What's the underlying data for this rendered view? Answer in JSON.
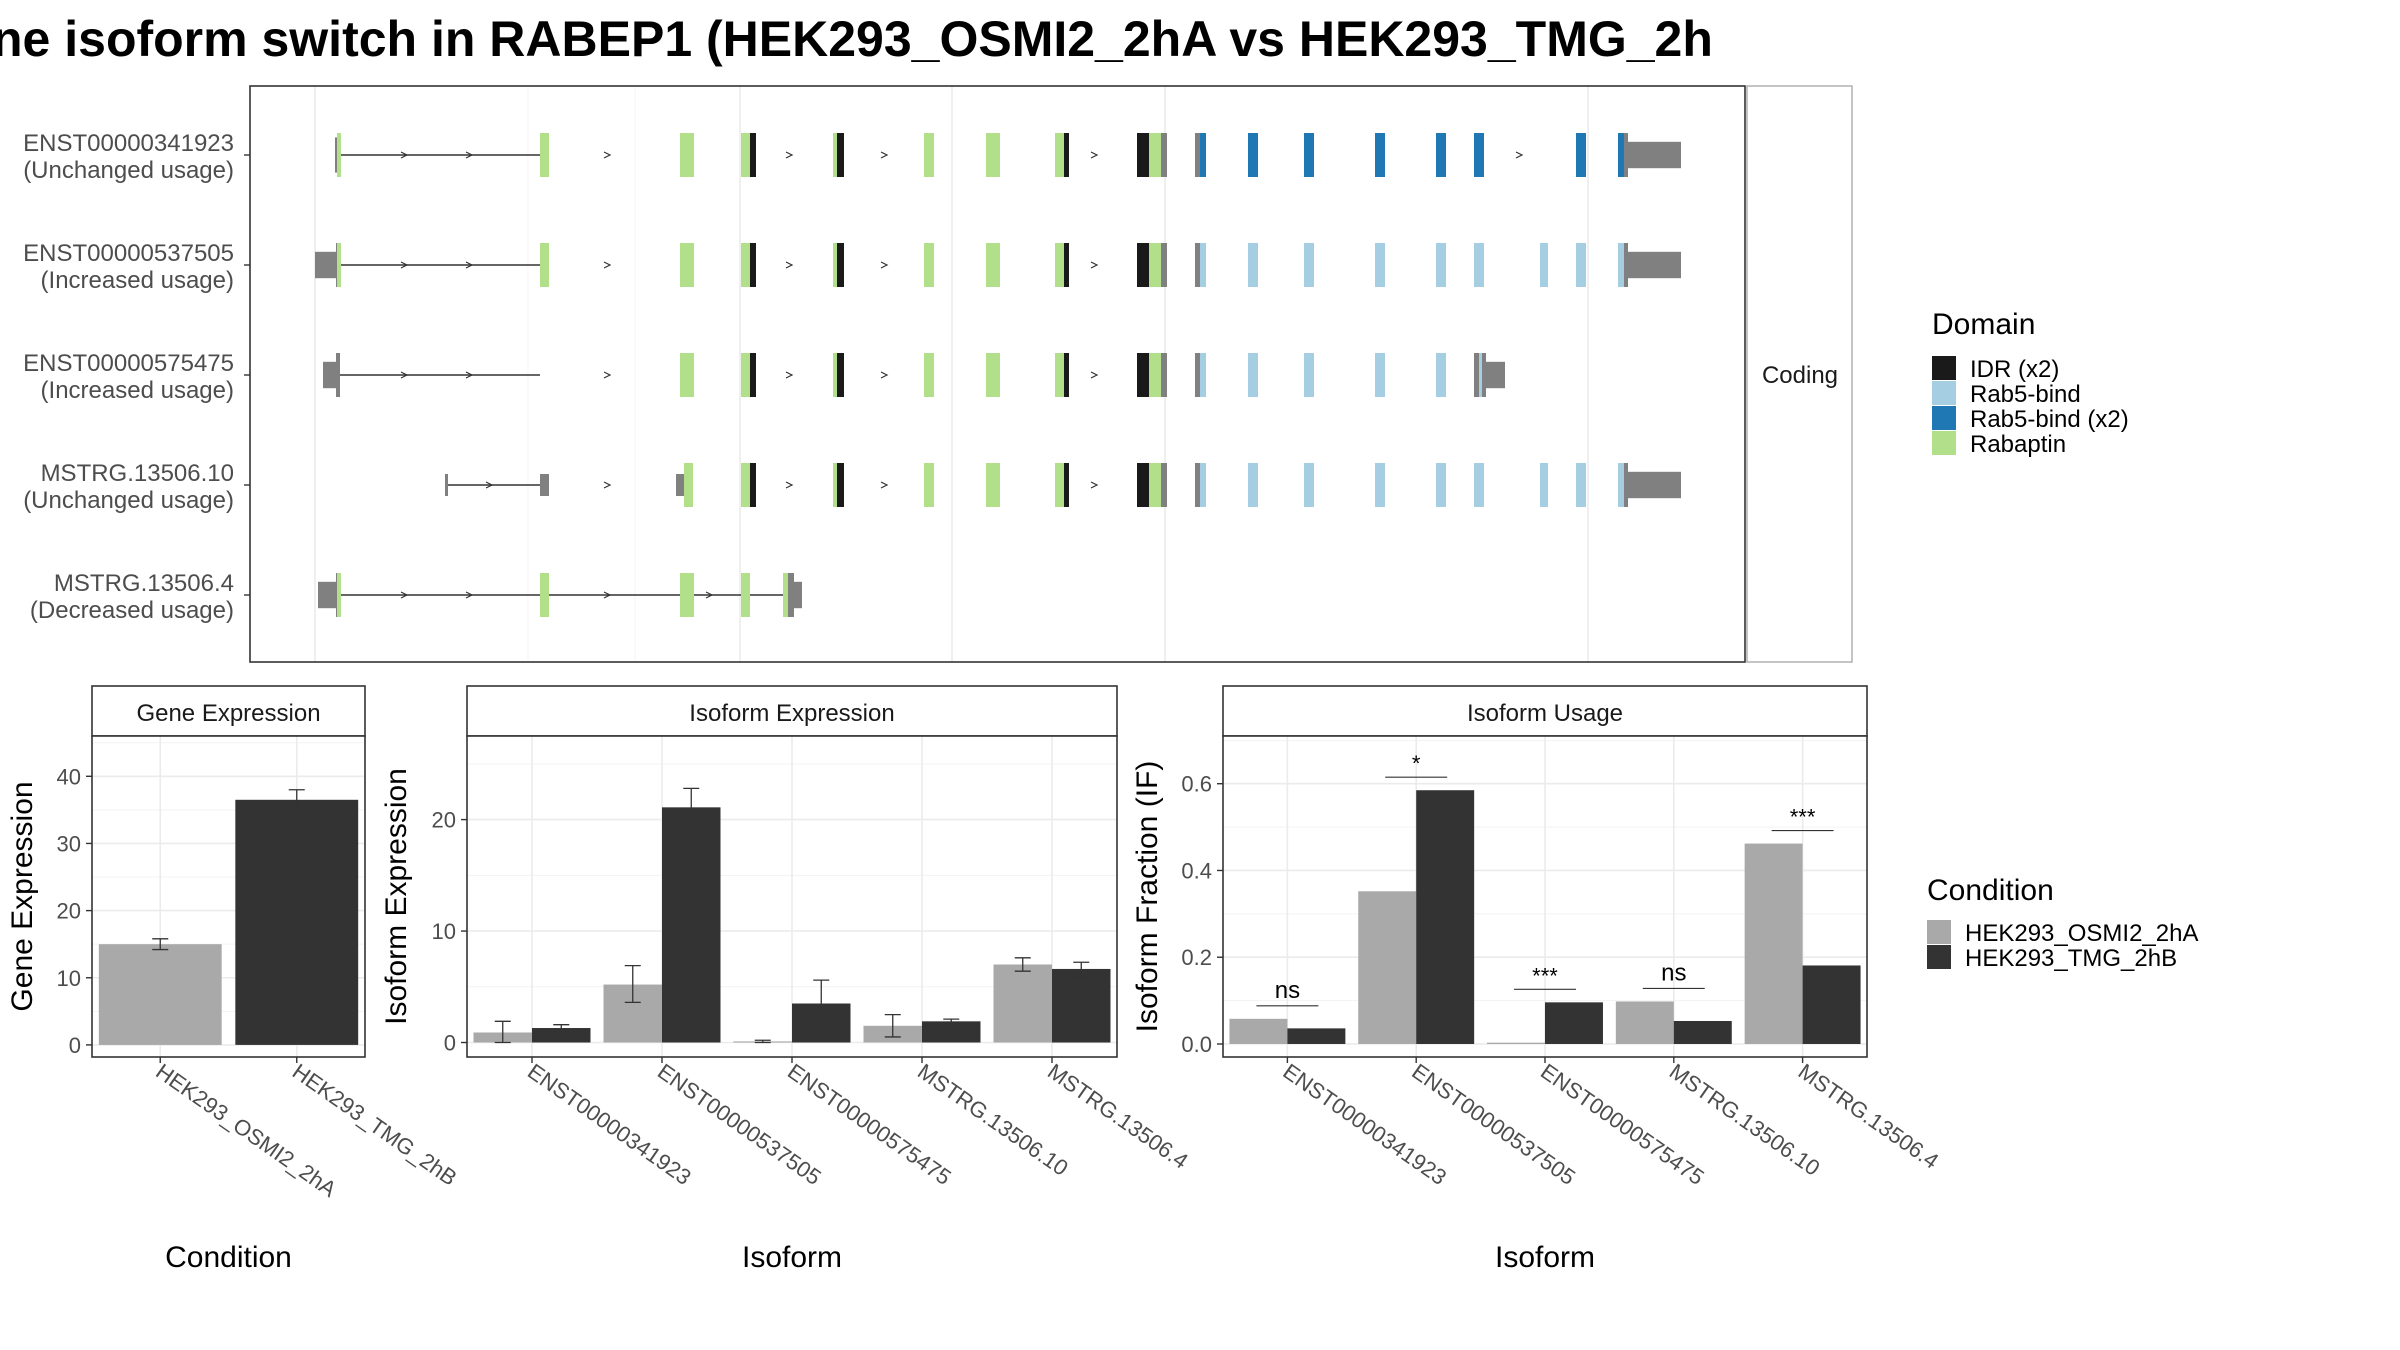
{
  "title": "ne isoform switch in RABEP1 (HEK293_OSMI2_2hA vs HEK293_TMG_2h",
  "colors": {
    "IDR": "#1a1a1a",
    "Rab5-bind": "#a6cee3",
    "Rab5-bind (x2)": "#1f78b4",
    "Rabaptin": "#b2df8a",
    "utr": "#808080",
    "cond_a": "#a9a9a9",
    "cond_b": "#333333",
    "grid": "#ebebeb",
    "strip": "#ffffff"
  },
  "structure_panel": {
    "facet_label": "Coding",
    "transcripts": [
      {
        "id": "ENST00000341923",
        "usage": "(Unchanged usage)"
      },
      {
        "id": "ENST00000537505",
        "usage": "(Increased usage)"
      },
      {
        "id": "ENST00000575475",
        "usage": "(Increased usage)"
      },
      {
        "id": "MSTRG.13506.10",
        "usage": "(Unchanged usage)"
      },
      {
        "id": "MSTRG.13506.4",
        "usage": "(Decreased usage)"
      }
    ]
  },
  "legend_domain": {
    "title": "Domain",
    "entries": [
      {
        "label": "IDR (x2)",
        "color": "#1a1a1a"
      },
      {
        "label": "Rab5-bind",
        "color": "#a6cee3"
      },
      {
        "label": "Rab5-bind (x2)",
        "color": "#1f78b4"
      },
      {
        "label": "Rabaptin",
        "color": "#b2df8a"
      }
    ]
  },
  "legend_condition": {
    "title": "Condition",
    "entries": [
      {
        "label": "HEK293_OSMI2_2hA",
        "color": "#a9a9a9"
      },
      {
        "label": "HEK293_TMG_2hB",
        "color": "#333333"
      }
    ]
  },
  "chart_data": [
    {
      "type": "bar",
      "title": "Gene Expression",
      "xlabel": "Condition",
      "ylabel": "Gene Expression",
      "categories": [
        "HEK293_OSMI2_2hA",
        "HEK293_TMG_2hB"
      ],
      "values": [
        15.0,
        36.5
      ],
      "errors": [
        [
          14.2,
          15.8
        ],
        [
          35.0,
          38.0
        ]
      ],
      "ylim": [
        -1.8,
        46.0
      ],
      "yticks": [
        0,
        10,
        20,
        30,
        40
      ]
    },
    {
      "type": "bar",
      "title": "Isoform Expression",
      "xlabel": "Isoform",
      "ylabel": "Isoform Expression",
      "categories": [
        "ENST00000341923",
        "ENST00000537505",
        "ENST00000575475",
        "MSTRG.13506.10",
        "MSTRG.13506.4"
      ],
      "series": [
        {
          "name": "HEK293_OSMI2_2hA",
          "values": [
            0.9,
            5.2,
            0.1,
            1.5,
            7.0
          ],
          "errors": [
            [
              0.0,
              1.9
            ],
            [
              3.6,
              6.9
            ],
            [
              0.0,
              0.2
            ],
            [
              0.5,
              2.5
            ],
            [
              6.4,
              7.6
            ]
          ]
        },
        {
          "name": "HEK293_TMG_2hB",
          "values": [
            1.3,
            21.1,
            3.5,
            1.9,
            6.6
          ],
          "errors": [
            [
              1.1,
              1.6
            ],
            [
              19.6,
              22.8
            ],
            [
              1.3,
              5.6
            ],
            [
              1.7,
              2.1
            ],
            [
              5.9,
              7.2
            ]
          ]
        }
      ],
      "ylim": [
        -1.3,
        27.5
      ],
      "yticks": [
        0,
        10,
        20
      ]
    },
    {
      "type": "bar",
      "title": "Isoform Usage",
      "xlabel": "Isoform",
      "ylabel": "Isoform Fraction (IF)",
      "categories": [
        "ENST00000341923",
        "ENST00000537505",
        "ENST00000575475",
        "MSTRG.13506.10",
        "MSTRG.13506.4"
      ],
      "series": [
        {
          "name": "HEK293_OSMI2_2hA",
          "values": [
            0.058,
            0.352,
            0.003,
            0.098,
            0.462
          ]
        },
        {
          "name": "HEK293_TMG_2hB",
          "values": [
            0.036,
            0.585,
            0.096,
            0.053,
            0.181
          ]
        }
      ],
      "significance": [
        {
          "label": "ns",
          "y": 0.088
        },
        {
          "label": "*",
          "y": 0.615
        },
        {
          "label": "***",
          "y": 0.126
        },
        {
          "label": "ns",
          "y": 0.128
        },
        {
          "label": "***",
          "y": 0.492
        }
      ],
      "ylim": [
        -0.03,
        0.71
      ],
      "yticks": [
        0.0,
        0.2,
        0.4,
        0.6
      ],
      "ytick_labels": [
        "0.0",
        "0.2",
        "0.4",
        "0.6"
      ]
    }
  ]
}
